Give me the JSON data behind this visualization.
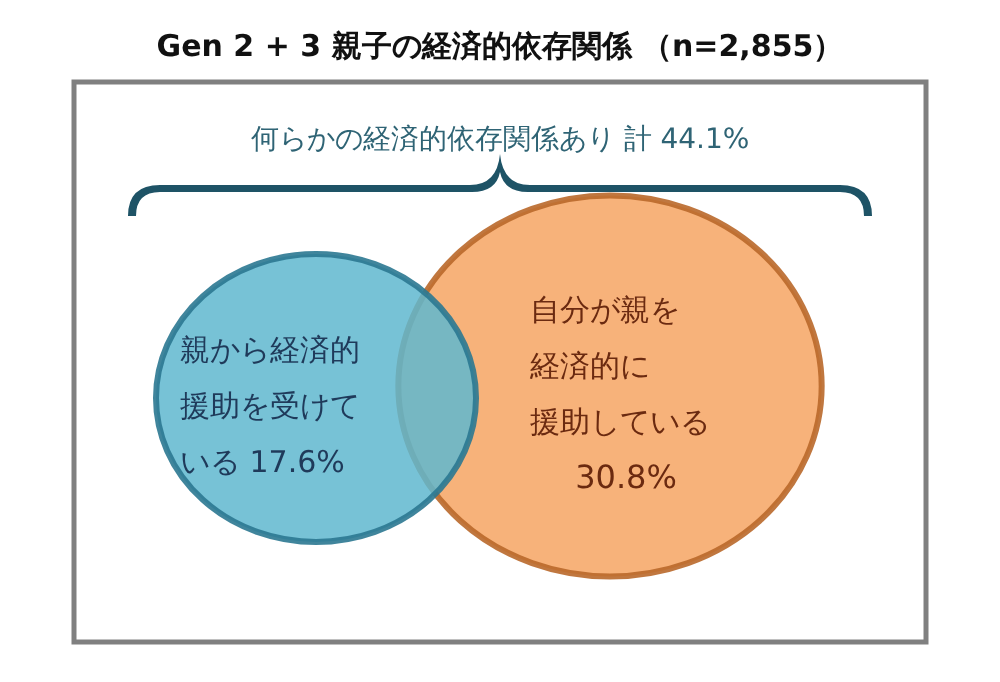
{
  "chart_data": {
    "type": "other",
    "title": "Gen 2 + 3  親子の経済的依存関係 （n=2,855）",
    "categories": [
      "親から経済的援助を受けている",
      "自分が親を経済的に援助している"
    ],
    "values": [
      17.6,
      30.8
    ],
    "value_labels": [
      "17.6%",
      "30.8%"
    ],
    "colors": [
      "#5fb7cf",
      "#f7b27a"
    ],
    "annotations": [
      "何らかの経済的依存関係あり  計 44.1%"
    ]
  }
}
